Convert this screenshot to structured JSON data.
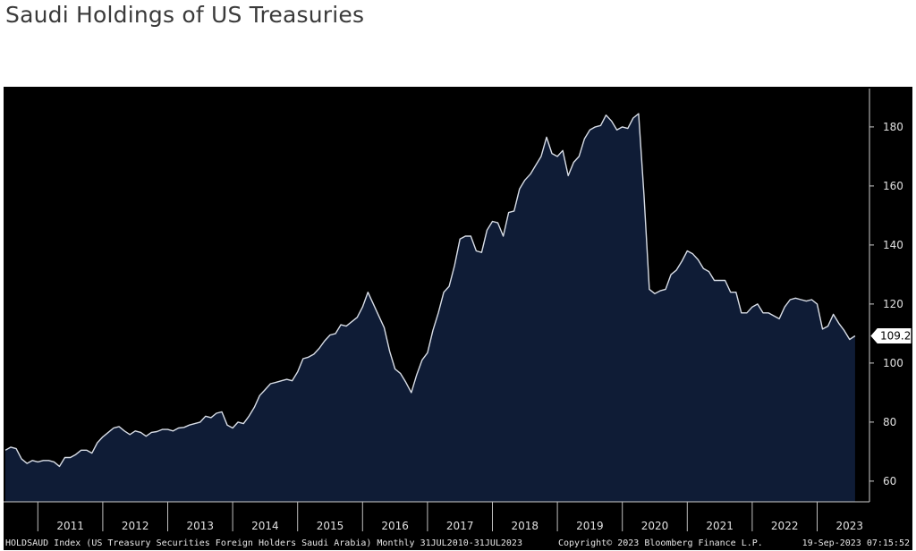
{
  "title": "Saudi Holdings of US Treasuries",
  "colors": {
    "background": "#000000",
    "area_fill": "#0f1c36",
    "line": "#d8dde6",
    "axis_text": "#e0e0e0"
  },
  "chart_data": {
    "type": "area",
    "title": "Saudi Holdings of US Treasuries",
    "xlabel": "",
    "ylabel": "",
    "frequency": "Monthly",
    "x_range": [
      "2010-07-31",
      "2023-07-31"
    ],
    "ylim": [
      53,
      193
    ],
    "y_ticks": [
      60,
      80,
      100,
      120,
      140,
      160,
      180
    ],
    "x_tick_labels": [
      "2011",
      "2012",
      "2013",
      "2014",
      "2015",
      "2016",
      "2017",
      "2018",
      "2019",
      "2020",
      "2021",
      "2022",
      "2023"
    ],
    "last_value_label": "109.2",
    "grid": false,
    "legend": "none",
    "series": [
      {
        "start": "2010-07",
        "values": [
          70.5,
          71.5,
          71,
          67.5,
          66,
          67,
          66.5,
          67,
          67,
          66.5,
          65,
          68,
          68,
          69,
          70.5,
          70.5,
          69.5,
          73,
          75,
          76.5,
          78,
          78.5,
          77,
          75.8,
          77,
          76.5,
          75.2,
          76.5,
          76.8,
          77.5,
          77.5,
          77,
          78,
          78.2,
          79,
          79.5,
          80,
          82,
          81.5,
          83,
          83.5,
          79,
          78,
          80,
          79.5,
          82,
          85,
          89,
          91,
          93,
          93.5,
          94,
          94.5,
          94,
          97,
          101.5,
          102,
          103,
          105,
          107.5,
          109.5,
          110,
          113,
          112.5,
          114,
          115.5,
          119,
          124,
          120,
          116,
          112,
          104,
          98,
          96.5,
          93.5,
          90,
          96,
          101,
          103.5,
          111,
          117,
          124,
          126,
          133,
          142,
          143,
          143,
          138,
          137.5,
          145,
          148,
          147.5,
          143,
          151,
          151.5,
          159,
          162,
          164,
          167,
          170,
          176.5,
          171,
          170,
          172,
          163.5,
          168,
          170,
          176,
          179,
          180,
          180.5,
          184,
          182,
          179,
          180,
          179.5,
          183,
          184.5,
          157,
          125,
          123.5,
          124.5,
          125,
          130,
          131.5,
          134.5,
          138,
          137,
          135,
          132,
          131,
          128,
          128,
          128,
          124,
          124,
          117,
          117,
          119,
          120,
          117,
          117,
          116,
          115,
          119,
          121.5,
          122,
          121.5,
          121,
          121.5,
          120,
          111.5,
          112.5,
          116.5,
          113.5,
          111,
          108,
          109.2
        ]
      }
    ]
  },
  "footer": {
    "source": "HOLDSAUD Index (US Treasury Securities Foreign Holders Saudi Arabia)  Monthly 31JUL2010-31JUL2023",
    "copyright": "Copyright© 2023 Bloomberg Finance L.P.",
    "timestamp": "19-Sep-2023 07:15:52"
  }
}
